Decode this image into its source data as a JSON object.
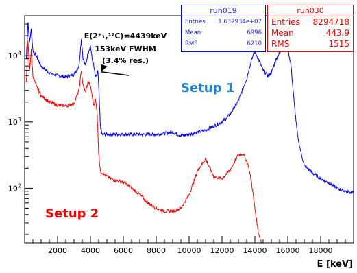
{
  "chart_data": {
    "type": "line",
    "xlabel": "E [keV]",
    "ylabel": "",
    "xlim": [
      0,
      20000
    ],
    "ylim": [
      15,
      40000
    ],
    "yscale": "log",
    "x_ticks": [
      2000,
      4000,
      6000,
      8000,
      10000,
      12000,
      14000,
      16000,
      18000
    ],
    "x_tick_labels": [
      "2000",
      "4000",
      "6000",
      "8000",
      "10000",
      "12000",
      "14000",
      "16000",
      "18000"
    ],
    "y_ticks": [
      100,
      1000,
      10000
    ],
    "y_tick_labels": [
      [
        "10",
        "2"
      ],
      [
        "10",
        "3"
      ],
      [
        "10",
        "4"
      ]
    ],
    "colors": {
      "run019": "#0000ff",
      "run030": "#ff0000"
    },
    "annotations": [
      {
        "kind": "peak-label",
        "lines": [
          "E(2⁺₁,¹²C)=4439keV",
          "153keV FWHM",
          "(3.4% res.)"
        ],
        "color": "#000000",
        "arrow_to_x": 4439,
        "arrow_to_y": 5700
      },
      {
        "kind": "series-label",
        "text": "Setup 1",
        "color": "#1f7fcf"
      },
      {
        "kind": "series-label",
        "text": "Setup 2",
        "color": "#ff0000"
      }
    ],
    "series": [
      {
        "color": "#0000ff",
        "x": [
          100,
          200,
          300,
          400,
          500,
          700,
          1000,
          1500,
          2000,
          2500,
          3000,
          3300,
          3450,
          3550,
          3700,
          3850,
          4000,
          4100,
          4200,
          4300,
          4400,
          4450,
          4500,
          4600,
          4700,
          5000,
          6000,
          7000,
          8000,
          9000,
          9500,
          10000,
          11000,
          12000,
          12500,
          13000,
          13500,
          13800,
          14000,
          14200,
          14500,
          14800,
          15000,
          15300,
          15500,
          15800,
          16000,
          16200,
          16400,
          16600,
          16800,
          17000,
          17500,
          18000,
          18500,
          19000,
          19500,
          20000
        ],
        "y": [
          9000,
          32000,
          16000,
          25000,
          12000,
          10000,
          7000,
          5500,
          5000,
          4800,
          5200,
          7000,
          18000,
          9000,
          7000,
          11000,
          14000,
          9000,
          7000,
          4800,
          5000,
          5800,
          3500,
          900,
          650,
          650,
          650,
          650,
          650,
          700,
          620,
          650,
          750,
          1000,
          1300,
          2100,
          4500,
          9000,
          11500,
          9000,
          6000,
          5000,
          5500,
          9000,
          11000,
          13500,
          13000,
          7000,
          1800,
          600,
          350,
          220,
          170,
          140,
          120,
          100,
          90,
          85
        ]
      },
      {
        "color": "#ff0000",
        "x": [
          100,
          200,
          300,
          400,
          500,
          700,
          1000,
          1500,
          2000,
          2500,
          3000,
          3300,
          3450,
          3550,
          3700,
          3850,
          4000,
          4100,
          4200,
          4300,
          4400,
          4500,
          4600,
          5000,
          5500,
          6000,
          6500,
          7000,
          7500,
          8000,
          8500,
          9000,
          9500,
          10000,
          10500,
          11000,
          11500,
          12000,
          12500,
          13000,
          13300,
          13600,
          13800,
          14000,
          14200,
          14400
        ],
        "y": [
          4000,
          16000,
          6000,
          12000,
          5000,
          3500,
          2500,
          2000,
          1800,
          1750,
          1900,
          3000,
          6000,
          3500,
          2800,
          4000,
          3500,
          2500,
          1800,
          2200,
          1500,
          350,
          180,
          150,
          130,
          125,
          100,
          80,
          60,
          50,
          45,
          45,
          50,
          80,
          180,
          280,
          150,
          140,
          190,
          320,
          330,
          220,
          120,
          50,
          22,
          15
        ]
      }
    ]
  },
  "stats_boxes": [
    {
      "title": "run019",
      "rows": [
        {
          "label": "Entries",
          "value": "1.632934e+07"
        },
        {
          "label": "Mean",
          "value": "6996"
        },
        {
          "label": "RMS",
          "value": "6210"
        }
      ]
    },
    {
      "title": "run030",
      "rows": [
        {
          "label": "Entries",
          "value": "8294718"
        },
        {
          "label": "Mean",
          "value": "443.9"
        },
        {
          "label": "RMS",
          "value": "1515"
        }
      ]
    }
  ]
}
